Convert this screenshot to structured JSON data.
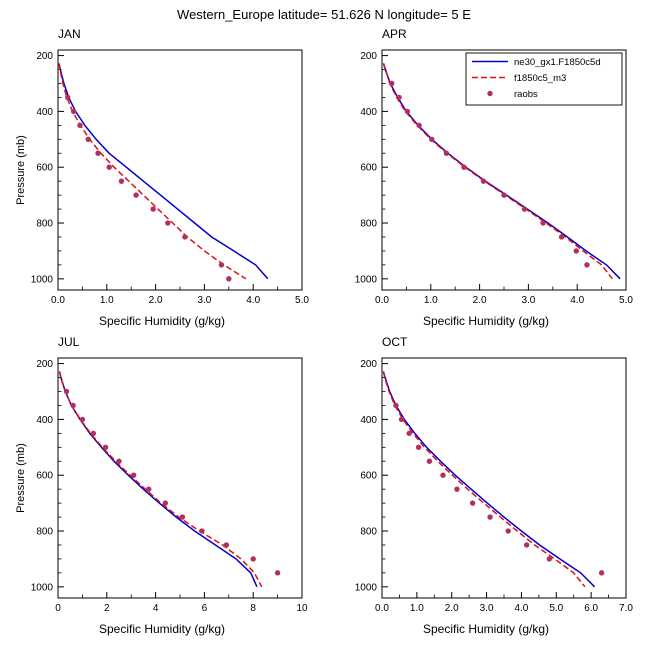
{
  "title": "Western_Europe  latitude= 51.626 N longitude= 5 E",
  "ylabel": "Pressure (mb)",
  "xlabel": "Specific Humidity (g/kg)",
  "colors": {
    "model1": "#0000cd",
    "model2": "#e01010",
    "raobs": "#b03060"
  },
  "legend": {
    "items": [
      {
        "label": "ne30_gx1.F1850c5d",
        "type": "line",
        "color": "#0000cd",
        "dash": ""
      },
      {
        "label": "f1850c5_m3",
        "type": "line",
        "color": "#e01010",
        "dash": "6 3"
      },
      {
        "label": "raobs",
        "type": "dot",
        "color": "#b03060"
      }
    ]
  },
  "chart_data": [
    {
      "type": "line",
      "title": "JAN",
      "xlim": [
        0,
        5
      ],
      "xticks": [
        0,
        1,
        2,
        3,
        4,
        5
      ],
      "xtick_labels": [
        "0.0",
        "1.0",
        "2.0",
        "3.0",
        "4.0",
        "5.0"
      ],
      "x_minor_step": 0.5,
      "ylim": [
        180,
        1040
      ],
      "yticks": [
        200,
        400,
        600,
        800,
        1000
      ],
      "y_minor_step": 50,
      "show_ylabel": true,
      "show_legend": false,
      "series": [
        {
          "name": "ne30_gx1.F1850c5d",
          "kind": "line",
          "color": "#0000cd",
          "dash": "",
          "pressure": [
            228,
            250,
            300,
            350,
            400,
            450,
            500,
            550,
            600,
            650,
            700,
            750,
            800,
            850,
            900,
            950,
            1000
          ],
          "humidity": [
            0.02,
            0.05,
            0.12,
            0.22,
            0.36,
            0.55,
            0.78,
            1.05,
            1.4,
            1.75,
            2.1,
            2.45,
            2.8,
            3.15,
            3.6,
            4.05,
            4.3
          ]
        },
        {
          "name": "f1850c5_m3",
          "kind": "line",
          "color": "#e01010",
          "dash": "6 3",
          "pressure": [
            228,
            250,
            300,
            350,
            400,
            450,
            500,
            550,
            600,
            650,
            700,
            750,
            800,
            850,
            900,
            950,
            1000
          ],
          "humidity": [
            0.02,
            0.04,
            0.1,
            0.18,
            0.3,
            0.46,
            0.65,
            0.88,
            1.15,
            1.45,
            1.75,
            2.05,
            2.35,
            2.65,
            3.0,
            3.4,
            3.85
          ]
        },
        {
          "name": "raobs",
          "kind": "scatter",
          "color": "#b03060",
          "pressure": [
            350,
            400,
            450,
            500,
            550,
            600,
            650,
            700,
            750,
            800,
            850,
            950,
            1000
          ],
          "humidity": [
            0.2,
            0.32,
            0.45,
            0.62,
            0.82,
            1.05,
            1.3,
            1.6,
            1.95,
            2.25,
            2.6,
            3.35,
            3.5
          ]
        }
      ]
    },
    {
      "type": "line",
      "title": "APR",
      "xlim": [
        0,
        5
      ],
      "xticks": [
        0,
        1,
        2,
        3,
        4,
        5
      ],
      "xtick_labels": [
        "0.0",
        "1.0",
        "2.0",
        "3.0",
        "4.0",
        "5.0"
      ],
      "x_minor_step": 0.5,
      "ylim": [
        180,
        1040
      ],
      "yticks": [
        200,
        400,
        600,
        800,
        1000
      ],
      "y_minor_step": 50,
      "show_ylabel": false,
      "show_legend": true,
      "series": [
        {
          "name": "ne30_gx1.F1850c5d",
          "kind": "line",
          "color": "#0000cd",
          "dash": "",
          "pressure": [
            228,
            250,
            300,
            350,
            400,
            450,
            500,
            550,
            600,
            650,
            700,
            750,
            800,
            850,
            900,
            950,
            1000
          ],
          "humidity": [
            0.03,
            0.07,
            0.17,
            0.32,
            0.5,
            0.74,
            1.02,
            1.35,
            1.72,
            2.12,
            2.55,
            2.98,
            3.4,
            3.8,
            4.18,
            4.6,
            4.88
          ]
        },
        {
          "name": "f1850c5_m3",
          "kind": "line",
          "color": "#e01010",
          "dash": "6 3",
          "pressure": [
            228,
            250,
            300,
            350,
            400,
            450,
            500,
            550,
            600,
            650,
            700,
            750,
            800,
            850,
            900,
            950,
            1000
          ],
          "humidity": [
            0.03,
            0.07,
            0.16,
            0.3,
            0.48,
            0.72,
            1.0,
            1.33,
            1.7,
            2.1,
            2.52,
            2.95,
            3.36,
            3.76,
            4.12,
            4.5,
            4.72
          ]
        },
        {
          "name": "raobs",
          "kind": "scatter",
          "color": "#b03060",
          "pressure": [
            300,
            350,
            400,
            450,
            500,
            550,
            600,
            650,
            700,
            750,
            800,
            850,
            900,
            950
          ],
          "humidity": [
            0.2,
            0.35,
            0.52,
            0.76,
            1.02,
            1.32,
            1.68,
            2.08,
            2.5,
            2.92,
            3.3,
            3.68,
            3.98,
            4.2
          ]
        }
      ]
    },
    {
      "type": "line",
      "title": "JUL",
      "xlim": [
        0,
        10
      ],
      "xticks": [
        0,
        2,
        4,
        6,
        8,
        10
      ],
      "xtick_labels": [
        "0",
        "2",
        "4",
        "6",
        "8",
        "10"
      ],
      "x_minor_step": 1,
      "ylim": [
        180,
        1040
      ],
      "yticks": [
        200,
        400,
        600,
        800,
        1000
      ],
      "y_minor_step": 50,
      "show_ylabel": true,
      "show_legend": false,
      "series": [
        {
          "name": "ne30_gx1.F1850c5d",
          "kind": "line",
          "color": "#0000cd",
          "dash": "",
          "pressure": [
            228,
            250,
            300,
            350,
            400,
            450,
            500,
            550,
            600,
            650,
            700,
            750,
            800,
            850,
            900,
            950,
            1000
          ],
          "humidity": [
            0.06,
            0.12,
            0.3,
            0.55,
            0.9,
            1.3,
            1.78,
            2.3,
            2.88,
            3.5,
            4.15,
            4.85,
            5.6,
            6.45,
            7.3,
            7.9,
            8.15
          ]
        },
        {
          "name": "f1850c5_m3",
          "kind": "line",
          "color": "#e01010",
          "dash": "6 3",
          "pressure": [
            228,
            250,
            300,
            350,
            400,
            450,
            500,
            550,
            600,
            650,
            700,
            750,
            800,
            850,
            900,
            950,
            1000
          ],
          "humidity": [
            0.06,
            0.12,
            0.3,
            0.55,
            0.92,
            1.33,
            1.82,
            2.36,
            2.95,
            3.58,
            4.22,
            4.95,
            5.8,
            6.75,
            7.5,
            8.05,
            8.35
          ]
        },
        {
          "name": "raobs",
          "kind": "scatter",
          "color": "#b03060",
          "pressure": [
            300,
            350,
            400,
            450,
            500,
            550,
            600,
            650,
            700,
            750,
            800,
            850,
            900,
            950
          ],
          "humidity": [
            0.35,
            0.62,
            1.0,
            1.45,
            1.95,
            2.5,
            3.1,
            3.72,
            4.4,
            5.1,
            5.9,
            6.9,
            8.0,
            9.0
          ]
        }
      ]
    },
    {
      "type": "line",
      "title": "OCT",
      "xlim": [
        0,
        7
      ],
      "xticks": [
        0,
        1,
        2,
        3,
        4,
        5,
        6,
        7
      ],
      "xtick_labels": [
        "0.0",
        "1.0",
        "2.0",
        "3.0",
        "4.0",
        "5.0",
        "6.0",
        "7.0"
      ],
      "x_minor_step": 0.5,
      "ylim": [
        180,
        1040
      ],
      "yticks": [
        200,
        400,
        600,
        800,
        1000
      ],
      "y_minor_step": 50,
      "show_ylabel": false,
      "show_legend": false,
      "series": [
        {
          "name": "ne30_gx1.F1850c5d",
          "kind": "line",
          "color": "#0000cd",
          "dash": "",
          "pressure": [
            228,
            250,
            300,
            350,
            400,
            450,
            500,
            550,
            600,
            650,
            700,
            750,
            800,
            850,
            900,
            950,
            1000
          ],
          "humidity": [
            0.04,
            0.09,
            0.22,
            0.4,
            0.64,
            0.94,
            1.28,
            1.68,
            2.1,
            2.56,
            3.02,
            3.5,
            4.0,
            4.52,
            5.1,
            5.7,
            6.1
          ]
        },
        {
          "name": "f1850c5_m3",
          "kind": "line",
          "color": "#e01010",
          "dash": "6 3",
          "pressure": [
            228,
            250,
            300,
            350,
            400,
            450,
            500,
            550,
            600,
            650,
            700,
            750,
            800,
            850,
            900,
            950,
            1000
          ],
          "humidity": [
            0.04,
            0.08,
            0.2,
            0.37,
            0.6,
            0.89,
            1.22,
            1.6,
            2.02,
            2.46,
            2.92,
            3.4,
            3.88,
            4.38,
            4.95,
            5.5,
            5.82
          ]
        },
        {
          "name": "raobs",
          "kind": "scatter",
          "color": "#b03060",
          "pressure": [
            350,
            400,
            450,
            500,
            550,
            600,
            650,
            700,
            750,
            800,
            850,
            900,
            950
          ],
          "humidity": [
            0.4,
            0.56,
            0.78,
            1.05,
            1.36,
            1.75,
            2.15,
            2.6,
            3.1,
            3.62,
            4.15,
            4.8,
            6.3
          ]
        }
      ]
    }
  ]
}
